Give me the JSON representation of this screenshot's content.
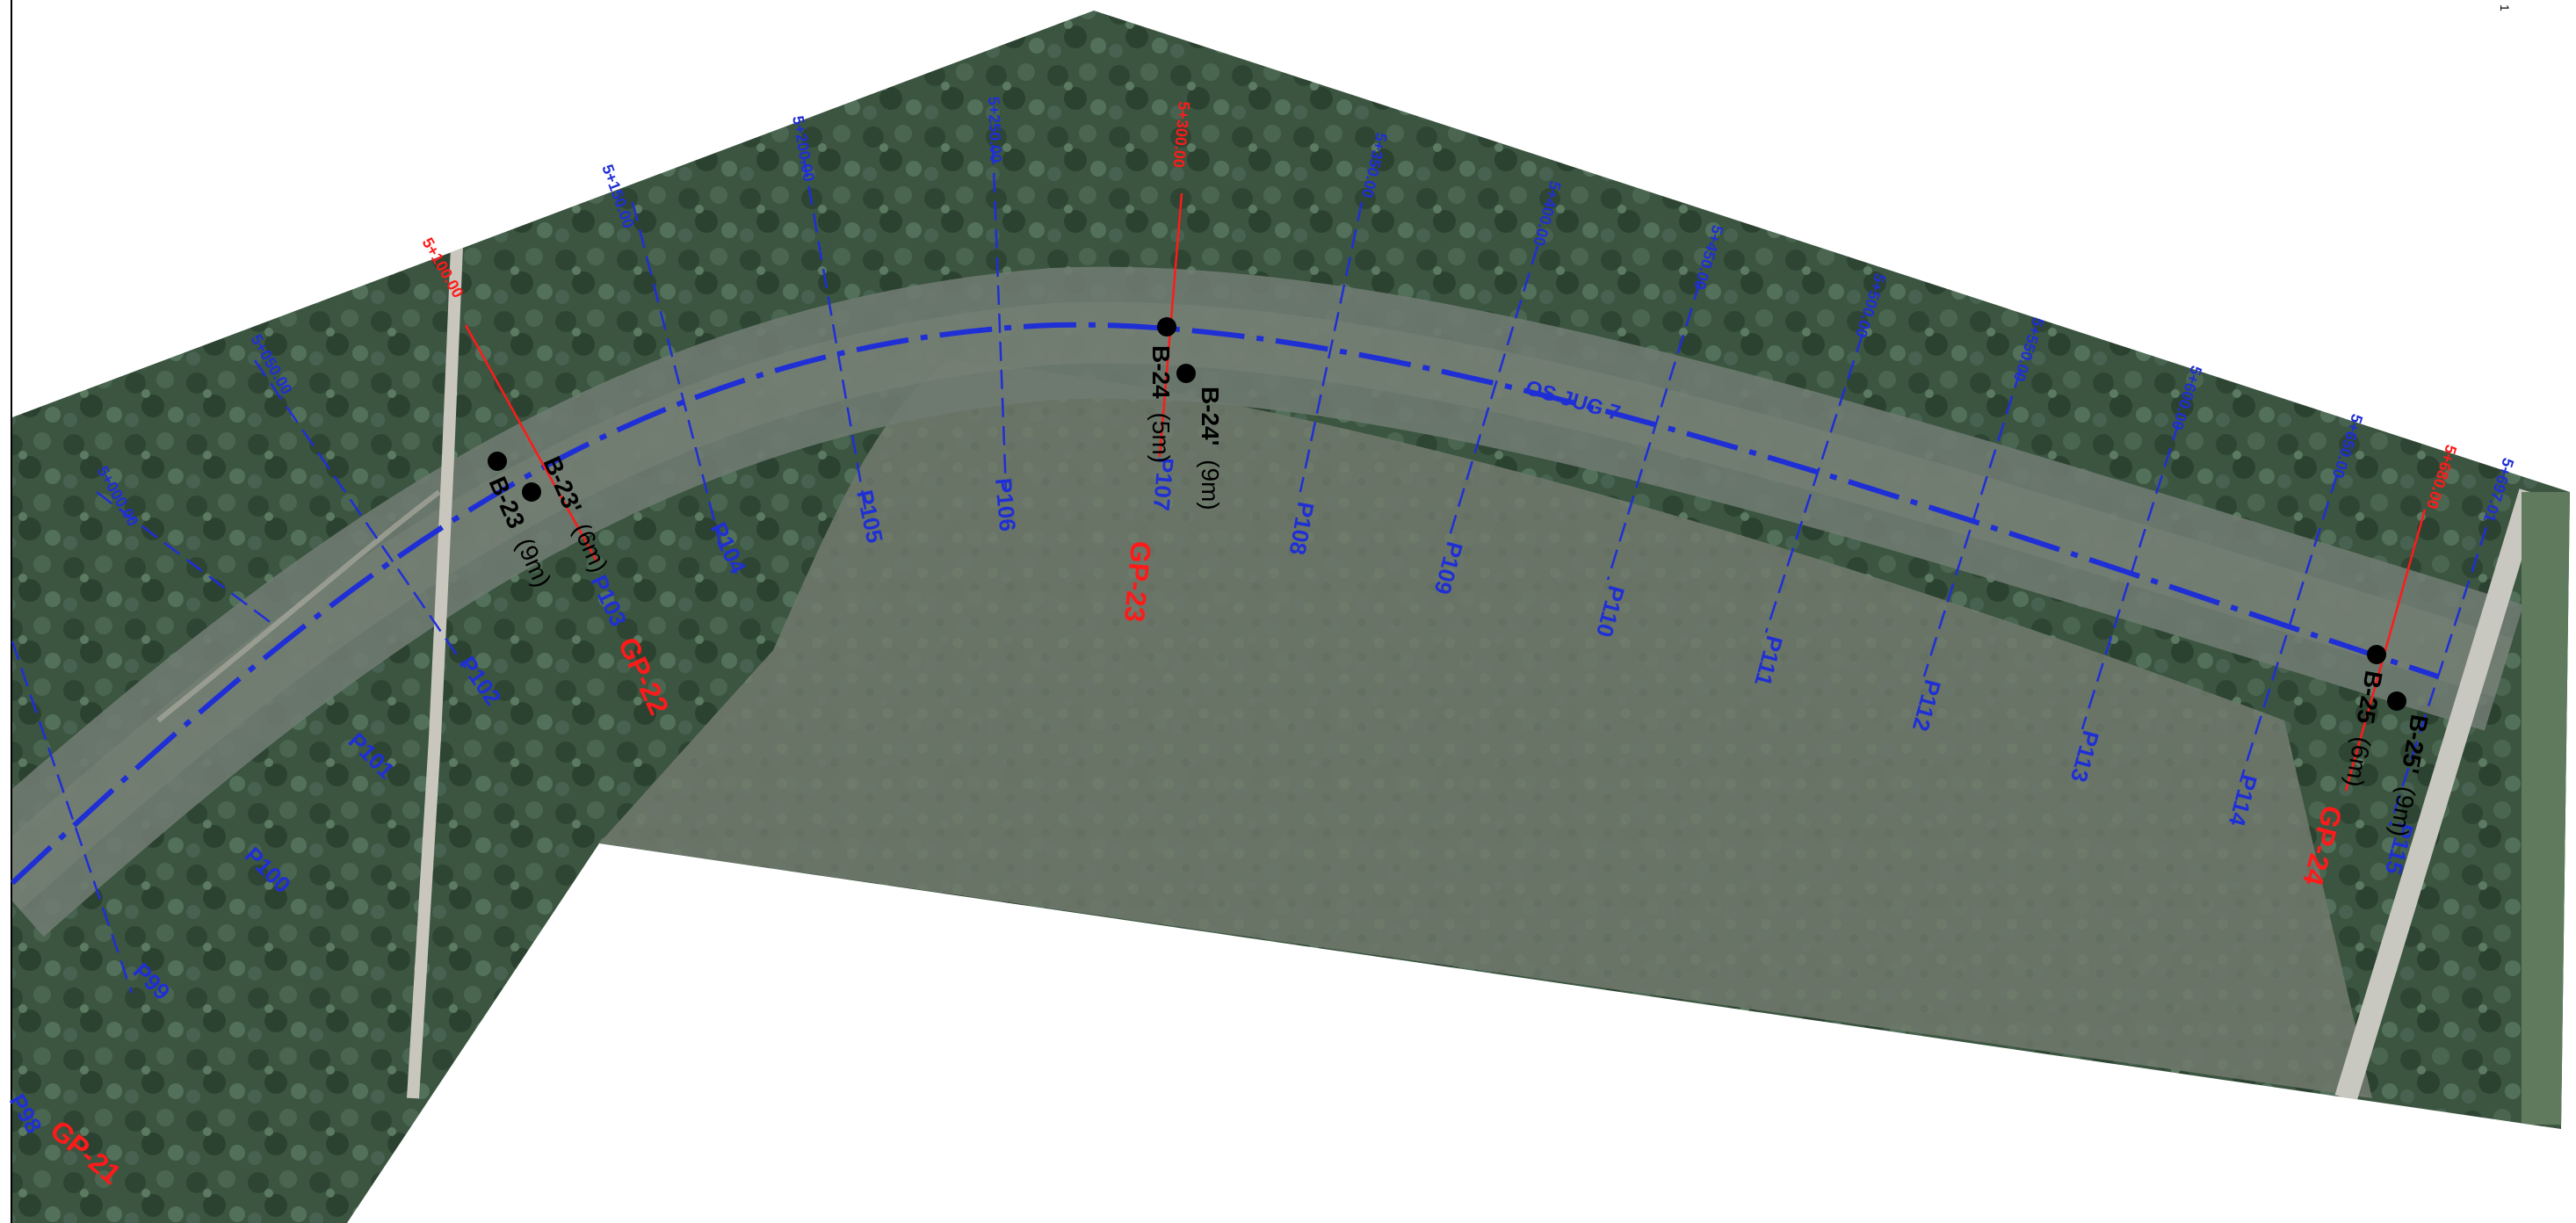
{
  "map": {
    "alignment_label": "OS JUG 7",
    "corner_mark": "1",
    "stations": [
      {
        "label": "5+000.00",
        "color": "blue"
      },
      {
        "label": "5+050.00",
        "color": "blue"
      },
      {
        "label": "5+100.00",
        "color": "red"
      },
      {
        "label": "5+150.00",
        "color": "blue"
      },
      {
        "label": "5+200.00",
        "color": "blue"
      },
      {
        "label": "5+250.00",
        "color": "blue"
      },
      {
        "label": "5+300.00",
        "color": "red"
      },
      {
        "label": "5+350.00",
        "color": "blue"
      },
      {
        "label": "5+400.00",
        "color": "blue"
      },
      {
        "label": "5+450.00",
        "color": "blue"
      },
      {
        "label": "5+500.00",
        "color": "blue"
      },
      {
        "label": "5+550.00",
        "color": "blue"
      },
      {
        "label": "5+600.00",
        "color": "blue"
      },
      {
        "label": "5+650.00",
        "color": "blue"
      },
      {
        "label": "5+680.00",
        "color": "red"
      },
      {
        "label": "5+697.01",
        "color": "blue"
      }
    ],
    "profiles": [
      "P98",
      "P99",
      "P100",
      "P101",
      "P102",
      "P103",
      "P104",
      "P105",
      "P106",
      "P107",
      "P108",
      "P109",
      "P110",
      "P111",
      "P112",
      "P113",
      "P114",
      "P115"
    ],
    "geo_points": [
      "GP-21",
      "GP-22",
      "GP-23",
      "GP-24"
    ],
    "boreholes": [
      {
        "id": "B-23",
        "depth": "(9m)"
      },
      {
        "id": "B-23'",
        "depth": "(6m)"
      },
      {
        "id": "B-24",
        "depth": "(5m)"
      },
      {
        "id": "B-24'",
        "depth": "(9m)"
      },
      {
        "id": "B-25",
        "depth": "(6m)"
      },
      {
        "id": "B-25'",
        "depth": "(9m)"
      }
    ],
    "colors": {
      "alignment": "#1f2fd6",
      "station_red": "#ff1a1a",
      "forest": "#3f5a45",
      "field": "#6e7a6a"
    }
  }
}
